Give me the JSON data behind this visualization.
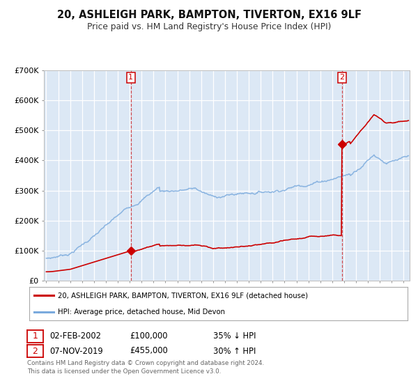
{
  "title": "20, ASHLEIGH PARK, BAMPTON, TIVERTON, EX16 9LF",
  "subtitle": "Price paid vs. HM Land Registry's House Price Index (HPI)",
  "ylim": [
    0,
    700000
  ],
  "yticks": [
    0,
    100000,
    200000,
    300000,
    400000,
    500000,
    600000,
    700000
  ],
  "ytick_labels": [
    "£0",
    "£100K",
    "£200K",
    "£300K",
    "£400K",
    "£500K",
    "£600K",
    "£700K"
  ],
  "xlim_start": 1994.8,
  "xlim_end": 2025.5,
  "sale1_year": 2002.085,
  "sale1_price": 100000,
  "sale2_year": 2019.836,
  "sale2_price": 455000,
  "red_color": "#cc0000",
  "blue_color": "#7aaadd",
  "bg_color": "#dce8f5",
  "fig_bg": "#ffffff",
  "grid_color": "#ffffff",
  "legend1": "20, ASHLEIGH PARK, BAMPTON, TIVERTON, EX16 9LF (detached house)",
  "legend2": "HPI: Average price, detached house, Mid Devon",
  "note1_label": "1",
  "note1_date": "02-FEB-2002",
  "note1_price": "£100,000",
  "note1_hpi": "35% ↓ HPI",
  "note2_label": "2",
  "note2_date": "07-NOV-2019",
  "note2_price": "£455,000",
  "note2_hpi": "30% ↑ HPI",
  "footer_line1": "Contains HM Land Registry data © Crown copyright and database right 2024.",
  "footer_line2": "This data is licensed under the Open Government Licence v3.0."
}
